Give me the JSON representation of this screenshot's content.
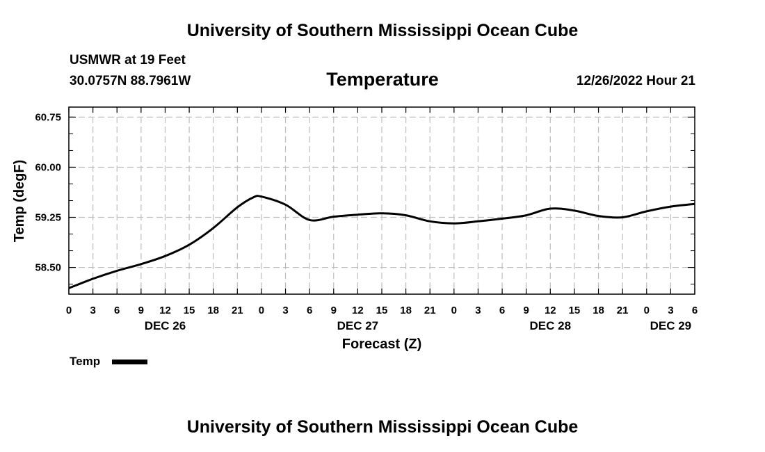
{
  "page": {
    "title_top": "University of Southern Mississippi Ocean Cube",
    "title_bottom": "University of Southern Mississippi Ocean Cube",
    "station": "USMWR at 19 Feet",
    "location": "30.0757N  88.7961W",
    "date_stamp": "12/26/2022 Hour 21"
  },
  "chart_data": {
    "type": "line",
    "title": "Temperature",
    "xlabel": "Forecast (Z)",
    "ylabel": "Temp (degF)",
    "ylim": [
      58.1,
      60.9
    ],
    "yticks": [
      58.5,
      59.25,
      60.0,
      60.75
    ],
    "ytick_labels": [
      "58.50",
      "59.25",
      "60.00",
      "60.75"
    ],
    "xlim": [
      0,
      78
    ],
    "x_unit": "hours after DEC 26 00Z",
    "xtick_labels": [
      "0",
      "3",
      "6",
      "9",
      "12",
      "15",
      "18",
      "21",
      "0",
      "3",
      "6",
      "9",
      "12",
      "15",
      "18",
      "21",
      "0",
      "3",
      "6",
      "9",
      "12",
      "15",
      "18",
      "21",
      "0",
      "3",
      "6"
    ],
    "day_labels": [
      {
        "label": "DEC 26",
        "hour": 12
      },
      {
        "label": "DEC 27",
        "hour": 36
      },
      {
        "label": "DEC 28",
        "hour": 60
      },
      {
        "label": "DEC 29",
        "hour": 75
      }
    ],
    "grid": true,
    "legend": "bottom-left",
    "series": [
      {
        "name": "Temp",
        "color": "#000000",
        "x": [
          0,
          3,
          6,
          9,
          12,
          15,
          18,
          21,
          23,
          24,
          27,
          30,
          33,
          36,
          39,
          42,
          45,
          48,
          51,
          54,
          57,
          60,
          63,
          66,
          69,
          72,
          75,
          78
        ],
        "y": [
          58.19,
          58.33,
          58.45,
          58.55,
          58.67,
          58.84,
          59.09,
          59.4,
          59.55,
          59.56,
          59.44,
          59.21,
          59.26,
          59.29,
          59.31,
          59.28,
          59.19,
          59.16,
          59.19,
          59.23,
          59.28,
          59.38,
          59.35,
          59.27,
          59.25,
          59.34,
          59.41,
          59.45
        ]
      }
    ]
  }
}
